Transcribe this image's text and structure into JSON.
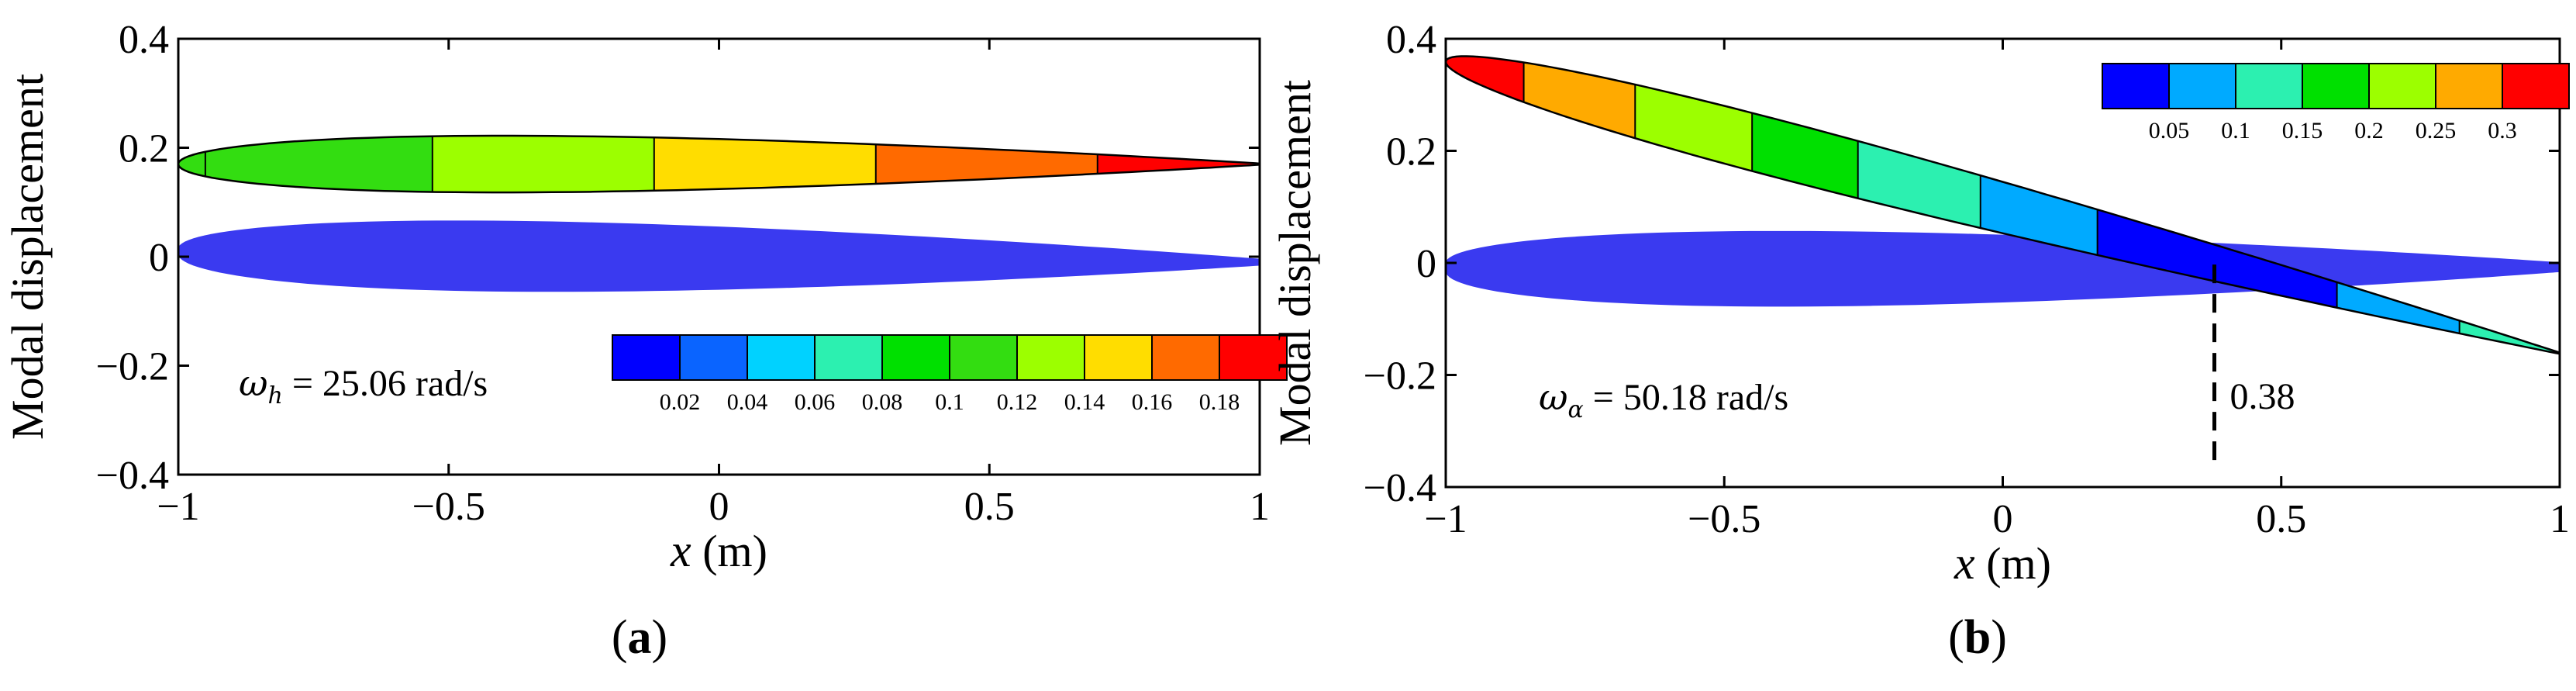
{
  "chart_data": [
    {
      "type": "contour",
      "panel": "a",
      "caption_label": "a",
      "ylabel": "Modal displacement",
      "xlabel_var": "x",
      "xlabel_unit": " (m)",
      "xlim": [
        -1,
        1
      ],
      "ylim": [
        -0.4,
        0.4
      ],
      "xticks": [
        -1,
        -0.5,
        0,
        0.5,
        1
      ],
      "xtick_labels": [
        "−1",
        "−0.5",
        "0",
        "0.5",
        "1"
      ],
      "yticks": [
        -0.4,
        -0.2,
        0,
        0.2,
        0.4
      ],
      "ytick_labels": [
        "−0.4",
        "−0.2",
        "0",
        "0.2",
        "0.4"
      ],
      "mode_label": {
        "symbol": "ω",
        "subscript": "h",
        "text": " = 25.06 rad/s"
      },
      "legend": {
        "labels": [
          "0.02",
          "0.04",
          "0.06",
          "0.08",
          "0.1",
          "0.12",
          "0.14",
          "0.16",
          "0.18"
        ],
        "colors": [
          "#0000ff",
          "#0a64ff",
          "#00d2ff",
          "#2cf0b0",
          "#00e000",
          "#33dd11",
          "#9cff00",
          "#ffdd00",
          "#ff6a00",
          "#ff0000"
        ]
      },
      "undeformed": {
        "color": "#3a3af0",
        "camber": 0,
        "rotation_deg": 0,
        "y_offset": 0
      },
      "deformed": {
        "camber": 0,
        "rotation_deg": 0,
        "y_offset": 0.17,
        "thickness": 0.08
      },
      "band_boundaries_x": [
        -1,
        -0.95,
        -0.53,
        -0.12,
        0.29,
        0.7,
        1
      ],
      "band_colors": [
        "#33dd11",
        "#33dd11",
        "#9cff00",
        "#ffdd00",
        "#ff6a00",
        "#ff0000"
      ]
    },
    {
      "type": "contour",
      "panel": "b",
      "caption_label": "b",
      "ylabel": "Modal displacement",
      "xlabel_var": "x",
      "xlabel_unit": " (m)",
      "xlim": [
        -1,
        1
      ],
      "ylim": [
        -0.4,
        0.4
      ],
      "xticks": [
        -1,
        -0.5,
        0,
        0.5,
        1
      ],
      "xtick_labels": [
        "−1",
        "−0.5",
        "0",
        "0.5",
        "1"
      ],
      "yticks": [
        -0.4,
        -0.2,
        0,
        0.2,
        0.4
      ],
      "ytick_labels": [
        "−0.4",
        "−0.2",
        "0",
        "0.2",
        "0.4"
      ],
      "mode_label": {
        "symbol": "ω",
        "subscript": "α",
        "text": " = 50.18 rad/s"
      },
      "legend": {
        "labels": [
          "0.05",
          "0.1",
          "0.15",
          "0.2",
          "0.25",
          "0.3"
        ],
        "colors": [
          "#0000ff",
          "#00aaff",
          "#2cf0b0",
          "#00e000",
          "#9cff00",
          "#ffaa00",
          "#ff0000"
        ]
      },
      "pivot_x": 0.38,
      "pivot_label": "0.38",
      "undeformed": {
        "color": "#3a3af0",
        "camber": 0,
        "rotation_deg": 0,
        "y_offset": 0
      },
      "deformed": {
        "pivot": 0.38,
        "slope": -0.26,
        "thickness": 0.08
      },
      "band_boundaries_x": [
        -1,
        -0.86,
        -0.66,
        -0.45,
        -0.26,
        -0.04,
        0.17,
        0.6,
        0.82,
        1
      ],
      "band_colors": [
        "#ff0000",
        "#ffaa00",
        "#9cff00",
        "#00e000",
        "#2cf0b0",
        "#00aaff",
        "#0000ff",
        "#00aaff",
        "#2cf0b0"
      ]
    }
  ]
}
